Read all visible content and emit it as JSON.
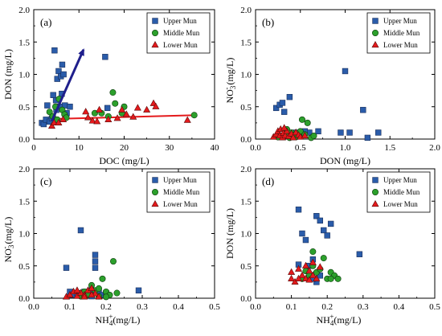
{
  "colors": {
    "upper": "#2a5caa",
    "middle": "#2ca02c",
    "lower": "#e41a1c",
    "arrow": "#1f1f8c",
    "lower_line": "#e41a1c"
  },
  "chart_data": [
    {
      "type": "scatter",
      "panel_label": "(a)",
      "xlabel": "DOC  (mg/L)",
      "ylabel": "DON  (mg/L)",
      "xlim": [
        0,
        40
      ],
      "ylim": [
        0,
        2.0
      ],
      "xticks": [
        "0",
        "10",
        "20",
        "30",
        "40"
      ],
      "yticks": [
        "0.0",
        "0.5",
        "1.0",
        "1.5",
        "2.0"
      ],
      "legend": [
        "Upper Mun",
        "Middle Mun",
        "Lower Mun"
      ],
      "legend_position": "top-right",
      "series": [
        {
          "name": "Upper Mun",
          "points": [
            [
              1.8,
              0.25
            ],
            [
              2.2,
              0.23
            ],
            [
              2.7,
              0.3
            ],
            [
              3.0,
              0.52
            ],
            [
              3.5,
              0.27
            ],
            [
              4.0,
              0.32
            ],
            [
              4.3,
              0.68
            ],
            [
              4.6,
              1.37
            ],
            [
              4.9,
              0.6
            ],
            [
              5.2,
              0.93
            ],
            [
              5.5,
              1.05
            ],
            [
              5.8,
              0.5
            ],
            [
              6.0,
              0.97
            ],
            [
              6.3,
              1.15
            ],
            [
              6.6,
              1.0
            ],
            [
              6.9,
              0.52
            ],
            [
              7.3,
              0.4
            ],
            [
              5.0,
              0.45
            ],
            [
              6.2,
              0.7
            ],
            [
              15.8,
              1.27
            ],
            [
              16.3,
              0.48
            ],
            [
              8.0,
              0.5
            ]
          ]
        },
        {
          "name": "Middle Mun",
          "points": [
            [
              3.5,
              0.42
            ],
            [
              4.2,
              0.35
            ],
            [
              4.8,
              0.5
            ],
            [
              5.2,
              0.3
            ],
            [
              5.6,
              0.62
            ],
            [
              6.3,
              0.45
            ],
            [
              6.8,
              0.38
            ],
            [
              7.2,
              0.33
            ],
            [
              13.5,
              0.4
            ],
            [
              15.0,
              0.4
            ],
            [
              16.5,
              0.35
            ],
            [
              17.5,
              0.72
            ],
            [
              18.0,
              0.55
            ],
            [
              19.5,
              0.4
            ],
            [
              20.0,
              0.5
            ],
            [
              35.5,
              0.37
            ]
          ]
        },
        {
          "name": "Lower Mun",
          "points": [
            [
              4.0,
              0.2
            ],
            [
              4.5,
              0.25
            ],
            [
              5.5,
              0.25
            ],
            [
              6.5,
              0.3
            ],
            [
              11.5,
              0.42
            ],
            [
              12.0,
              0.33
            ],
            [
              13.0,
              0.28
            ],
            [
              14.0,
              0.27
            ],
            [
              14.5,
              0.45
            ],
            [
              16.5,
              0.3
            ],
            [
              18.5,
              0.32
            ],
            [
              19.5,
              0.45
            ],
            [
              20.5,
              0.38
            ],
            [
              22.0,
              0.34
            ],
            [
              23.0,
              0.48
            ],
            [
              25.0,
              0.45
            ],
            [
              26.5,
              0.55
            ],
            [
              27.0,
              0.5
            ],
            [
              34.0,
              0.29
            ]
          ]
        }
      ],
      "upper_trend": [
        [
          4.0,
          0.28
        ],
        [
          11.0,
          1.38
        ]
      ],
      "lower_trend": [
        [
          4.0,
          0.31
        ],
        [
          36.0,
          0.37
        ]
      ]
    },
    {
      "type": "scatter",
      "panel_label": "(b)",
      "xlabel": "DON  (mg/L)",
      "ylabel": "NO3-  (mg/L)",
      "ylabel_parts": [
        "NO",
        "3",
        "-",
        "  (mg/L)"
      ],
      "xlim": [
        0,
        2.0
      ],
      "ylim": [
        0,
        2.0
      ],
      "xticks": [
        "0.0",
        "0.5",
        "1.0",
        "1.5",
        "2.0"
      ],
      "yticks": [
        "0.0",
        "0.5",
        "1.0",
        "1.5",
        "2.0"
      ],
      "legend": [
        "Upper Mun",
        "Middle Mun",
        "Lower Mun"
      ],
      "legend_position": "top-right",
      "series": [
        {
          "name": "Upper Mun",
          "points": [
            [
              0.23,
              0.48
            ],
            [
              0.27,
              0.53
            ],
            [
              0.3,
              0.56
            ],
            [
              0.38,
              0.65
            ],
            [
              0.4,
              0.07
            ],
            [
              0.45,
              0.1
            ],
            [
              0.48,
              0.08
            ],
            [
              0.5,
              0.05
            ],
            [
              0.6,
              0.1
            ],
            [
              0.7,
              0.12
            ],
            [
              0.95,
              0.1
            ],
            [
              1.0,
              1.05
            ],
            [
              1.05,
              0.1
            ],
            [
              1.2,
              0.45
            ],
            [
              1.25,
              0.02
            ],
            [
              1.37,
              0.1
            ],
            [
              0.32,
              0.42
            ],
            [
              0.55,
              0.12
            ]
          ]
        },
        {
          "name": "Middle Mun",
          "points": [
            [
              0.25,
              0.03
            ],
            [
              0.3,
              0.05
            ],
            [
              0.33,
              0.12
            ],
            [
              0.35,
              0.08
            ],
            [
              0.38,
              0.02
            ],
            [
              0.4,
              0.1
            ],
            [
              0.42,
              0.06
            ],
            [
              0.45,
              0.03
            ],
            [
              0.48,
              0.05
            ],
            [
              0.5,
              0.12
            ],
            [
              0.55,
              0.07
            ],
            [
              0.62,
              0.02
            ],
            [
              0.65,
              0.05
            ],
            [
              0.52,
              0.3
            ],
            [
              0.58,
              0.25
            ],
            [
              0.35,
              0.15
            ]
          ]
        },
        {
          "name": "Lower Mun",
          "points": [
            [
              0.2,
              0.03
            ],
            [
              0.23,
              0.07
            ],
            [
              0.25,
              0.12
            ],
            [
              0.27,
              0.05
            ],
            [
              0.28,
              0.15
            ],
            [
              0.3,
              0.02
            ],
            [
              0.31,
              0.09
            ],
            [
              0.33,
              0.05
            ],
            [
              0.35,
              0.12
            ],
            [
              0.37,
              0.04
            ],
            [
              0.4,
              0.08
            ],
            [
              0.42,
              0.02
            ],
            [
              0.45,
              0.1
            ],
            [
              0.48,
              0.06
            ],
            [
              0.5,
              0.03
            ],
            [
              0.55,
              0.05
            ],
            [
              0.32,
              0.17
            ]
          ]
        }
      ]
    },
    {
      "type": "scatter",
      "panel_label": "(c)",
      "xlabel": "NH4+ (mg/L)",
      "xlabel_parts": [
        "NH",
        "4",
        "+",
        "(mg/L)"
      ],
      "ylabel": "NO3-  (mg/L)",
      "ylabel_parts": [
        "NO",
        "3",
        "-",
        "  (mg/L)"
      ],
      "xlim": [
        0,
        0.5
      ],
      "ylim": [
        0,
        2.0
      ],
      "xticks": [
        "0.0",
        "0.1",
        "0.2",
        "0.3",
        "0.4",
        "0.5"
      ],
      "yticks": [
        "0.0",
        "0.5",
        "1.0",
        "1.5",
        "2.0"
      ],
      "legend": [
        "Upper Mun",
        "Middle Mun",
        "Lower Mun"
      ],
      "legend_position": "top-right",
      "series": [
        {
          "name": "Upper Mun",
          "points": [
            [
              0.09,
              0.47
            ],
            [
              0.1,
              0.1
            ],
            [
              0.11,
              0.05
            ],
            [
              0.12,
              0.08
            ],
            [
              0.13,
              1.05
            ],
            [
              0.14,
              0.1
            ],
            [
              0.15,
              0.05
            ],
            [
              0.16,
              0.12
            ],
            [
              0.17,
              0.47
            ],
            [
              0.17,
              0.57
            ],
            [
              0.17,
              0.67
            ],
            [
              0.18,
              0.1
            ],
            [
              0.19,
              0.05
            ],
            [
              0.2,
              0.08
            ],
            [
              0.29,
              0.12
            ],
            [
              0.16,
              0.03
            ]
          ]
        },
        {
          "name": "Middle Mun",
          "points": [
            [
              0.13,
              0.03
            ],
            [
              0.14,
              0.1
            ],
            [
              0.15,
              0.05
            ],
            [
              0.16,
              0.2
            ],
            [
              0.17,
              0.12
            ],
            [
              0.18,
              0.15
            ],
            [
              0.19,
              0.3
            ],
            [
              0.2,
              0.1
            ],
            [
              0.21,
              0.05
            ],
            [
              0.22,
              0.57
            ],
            [
              0.23,
              0.08
            ],
            [
              0.18,
              0.03
            ],
            [
              0.2,
              0.02
            ]
          ]
        },
        {
          "name": "Lower Mun",
          "points": [
            [
              0.09,
              0.02
            ],
            [
              0.1,
              0.05
            ],
            [
              0.11,
              0.1
            ],
            [
              0.12,
              0.03
            ],
            [
              0.13,
              0.08
            ],
            [
              0.14,
              0.05
            ],
            [
              0.15,
              0.12
            ],
            [
              0.16,
              0.15
            ],
            [
              0.17,
              0.07
            ],
            [
              0.18,
              0.02
            ],
            [
              0.12,
              0.12
            ],
            [
              0.14,
              0.02
            ],
            [
              0.16,
              0.05
            ]
          ]
        }
      ]
    },
    {
      "type": "scatter",
      "panel_label": "(d)",
      "xlabel": "NH4+ (mg/L)",
      "xlabel_parts": [
        "NH",
        "4",
        "+",
        "(mg/L)"
      ],
      "ylabel": "DON  (mg/L)",
      "xlim": [
        0,
        0.5
      ],
      "ylim": [
        0,
        2.0
      ],
      "xticks": [
        "0.0",
        "0.1",
        "0.2",
        "0.3",
        "0.4",
        "0.5"
      ],
      "yticks": [
        "0.0",
        "0.5",
        "1.0",
        "1.5",
        "2.0"
      ],
      "legend": [
        "Upper Mun",
        "Middle Mun",
        "Lower Mun"
      ],
      "legend_position": "top-right",
      "series": [
        {
          "name": "Upper Mun",
          "points": [
            [
              0.12,
              1.37
            ],
            [
              0.13,
              1.0
            ],
            [
              0.14,
              0.9
            ],
            [
              0.15,
              0.5
            ],
            [
              0.16,
              0.6
            ],
            [
              0.17,
              1.27
            ],
            [
              0.18,
              1.2
            ],
            [
              0.19,
              1.05
            ],
            [
              0.2,
              0.97
            ],
            [
              0.21,
              1.15
            ],
            [
              0.18,
              0.35
            ],
            [
              0.17,
              0.25
            ],
            [
              0.29,
              0.68
            ],
            [
              0.12,
              0.52
            ],
            [
              0.16,
              0.3
            ]
          ]
        },
        {
          "name": "Middle Mun",
          "points": [
            [
              0.13,
              0.3
            ],
            [
              0.14,
              0.42
            ],
            [
              0.15,
              0.35
            ],
            [
              0.16,
              0.5
            ],
            [
              0.17,
              0.4
            ],
            [
              0.18,
              0.45
            ],
            [
              0.19,
              0.62
            ],
            [
              0.2,
              0.3
            ],
            [
              0.21,
              0.4
            ],
            [
              0.22,
              0.35
            ],
            [
              0.23,
              0.3
            ],
            [
              0.21,
              0.3
            ],
            [
              0.16,
              0.72
            ]
          ]
        },
        {
          "name": "Lower Mun",
          "points": [
            [
              0.1,
              0.3
            ],
            [
              0.11,
              0.25
            ],
            [
              0.12,
              0.45
            ],
            [
              0.13,
              0.35
            ],
            [
              0.14,
              0.3
            ],
            [
              0.15,
              0.42
            ],
            [
              0.16,
              0.55
            ],
            [
              0.17,
              0.3
            ],
            [
              0.18,
              0.48
            ],
            [
              0.1,
              0.4
            ],
            [
              0.12,
              0.3
            ],
            [
              0.15,
              0.28
            ],
            [
              0.14,
              0.5
            ],
            [
              0.16,
              0.35
            ]
          ]
        }
      ]
    }
  ]
}
